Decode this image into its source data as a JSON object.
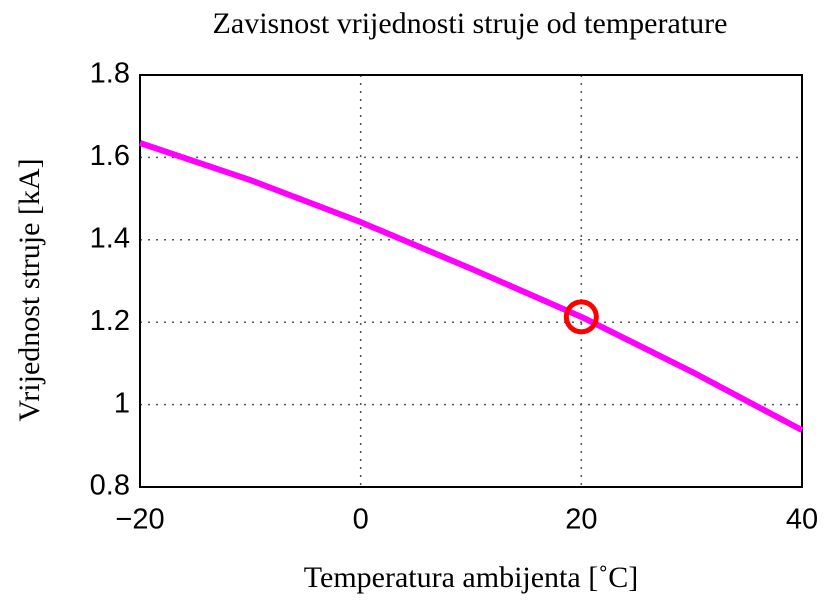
{
  "chart_data": {
    "type": "line",
    "title": "Zavisnost vrijednosti struje od temperature",
    "xlabel": "Temperatura ambijenta [˚C]",
    "ylabel": "Vrijednost struje [kA]",
    "series": [
      {
        "color": "#ff00ff",
        "x": [
          -20,
          -10,
          0,
          10,
          20,
          30,
          40
        ],
        "values": [
          1.635,
          1.545,
          1.443,
          1.33,
          1.213,
          1.08,
          0.938
        ]
      },
      {
        "color": "#ff0000",
        "marker": "o",
        "x": [
          20
        ],
        "values": [
          1.213
        ]
      }
    ],
    "xlim": [
      -20,
      40
    ],
    "xticks": [
      {
        "value": -20,
        "label": "−20"
      },
      0,
      20,
      40
    ],
    "ylim": [
      0.8,
      1.8
    ],
    "yticks": [
      0.8,
      1,
      1.2,
      1.4,
      1.6,
      1.8
    ],
    "grid": true
  }
}
